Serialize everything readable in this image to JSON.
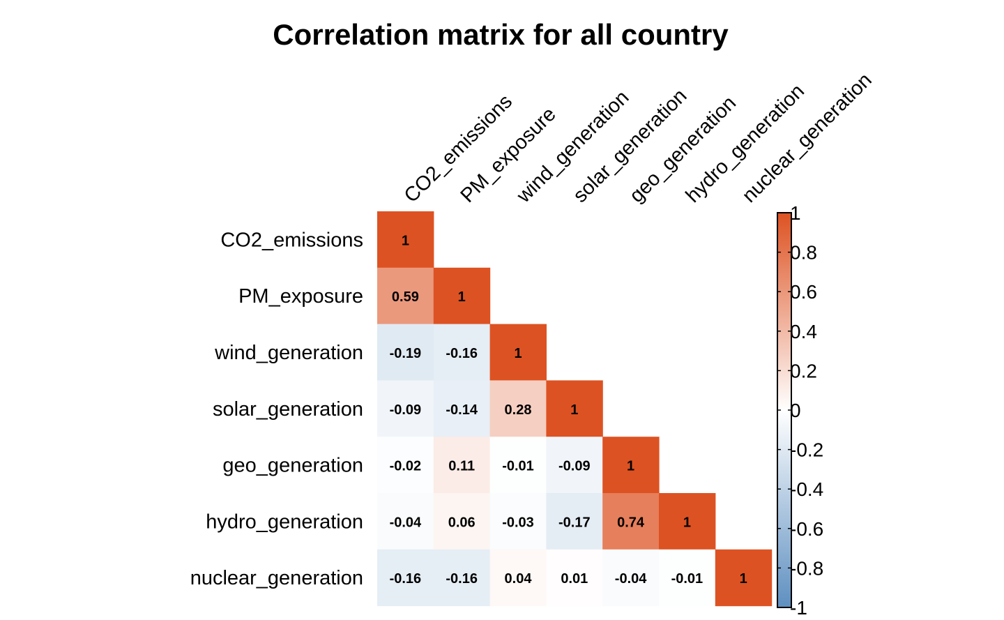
{
  "chart_data": {
    "type": "heatmap",
    "title": "Correlation matrix for all country",
    "variables": [
      "CO2_emissions",
      "PM_exposure",
      "wind_generation",
      "solar_generation",
      "geo_generation",
      "hydro_generation",
      "nuclear_generation"
    ],
    "matrix_shape": "lower-triangle",
    "cells": [
      {
        "row": 0,
        "col": 0,
        "value": 1,
        "label": "1"
      },
      {
        "row": 1,
        "col": 0,
        "value": 0.59,
        "label": "0.59"
      },
      {
        "row": 1,
        "col": 1,
        "value": 1,
        "label": "1"
      },
      {
        "row": 2,
        "col": 0,
        "value": -0.19,
        "label": "-0.19"
      },
      {
        "row": 2,
        "col": 1,
        "value": -0.16,
        "label": "-0.16"
      },
      {
        "row": 2,
        "col": 2,
        "value": 1,
        "label": "1"
      },
      {
        "row": 3,
        "col": 0,
        "value": -0.09,
        "label": "-0.09"
      },
      {
        "row": 3,
        "col": 1,
        "value": -0.14,
        "label": "-0.14"
      },
      {
        "row": 3,
        "col": 2,
        "value": 0.28,
        "label": "0.28"
      },
      {
        "row": 3,
        "col": 3,
        "value": 1,
        "label": "1"
      },
      {
        "row": 4,
        "col": 0,
        "value": -0.02,
        "label": "-0.02"
      },
      {
        "row": 4,
        "col": 1,
        "value": 0.11,
        "label": "0.11"
      },
      {
        "row": 4,
        "col": 2,
        "value": -0.01,
        "label": "-0.01"
      },
      {
        "row": 4,
        "col": 3,
        "value": -0.09,
        "label": "-0.09"
      },
      {
        "row": 4,
        "col": 4,
        "value": 1,
        "label": "1"
      },
      {
        "row": 5,
        "col": 0,
        "value": -0.04,
        "label": "-0.04"
      },
      {
        "row": 5,
        "col": 1,
        "value": 0.06,
        "label": "0.06"
      },
      {
        "row": 5,
        "col": 2,
        "value": -0.03,
        "label": "-0.03"
      },
      {
        "row": 5,
        "col": 3,
        "value": -0.17,
        "label": "-0.17"
      },
      {
        "row": 5,
        "col": 4,
        "value": 0.74,
        "label": "0.74"
      },
      {
        "row": 5,
        "col": 5,
        "value": 1,
        "label": "1"
      },
      {
        "row": 6,
        "col": 0,
        "value": -0.16,
        "label": "-0.16"
      },
      {
        "row": 6,
        "col": 1,
        "value": -0.16,
        "label": "-0.16"
      },
      {
        "row": 6,
        "col": 2,
        "value": 0.04,
        "label": "0.04"
      },
      {
        "row": 6,
        "col": 3,
        "value": 0.01,
        "label": "0.01"
      },
      {
        "row": 6,
        "col": 4,
        "value": -0.04,
        "label": "-0.04"
      },
      {
        "row": 6,
        "col": 5,
        "value": -0.01,
        "label": "-0.01"
      },
      {
        "row": 6,
        "col": 6,
        "value": 1,
        "label": "1"
      }
    ],
    "colorbar": {
      "range": [
        -1,
        1
      ],
      "ticks": [
        1,
        0.8,
        0.6,
        0.4,
        0.2,
        0,
        -0.2,
        -0.4,
        -0.6,
        -0.8,
        -1
      ],
      "tick_labels": [
        "1",
        "0.8",
        "0.6",
        "0.4",
        "0.2",
        "0",
        "-0.2",
        "-0.4",
        "-0.6",
        "-0.8",
        "-1"
      ],
      "colors": {
        "negative": "#5e8fc0",
        "zero": "#ffffff",
        "positive": "#dd5222"
      }
    }
  }
}
